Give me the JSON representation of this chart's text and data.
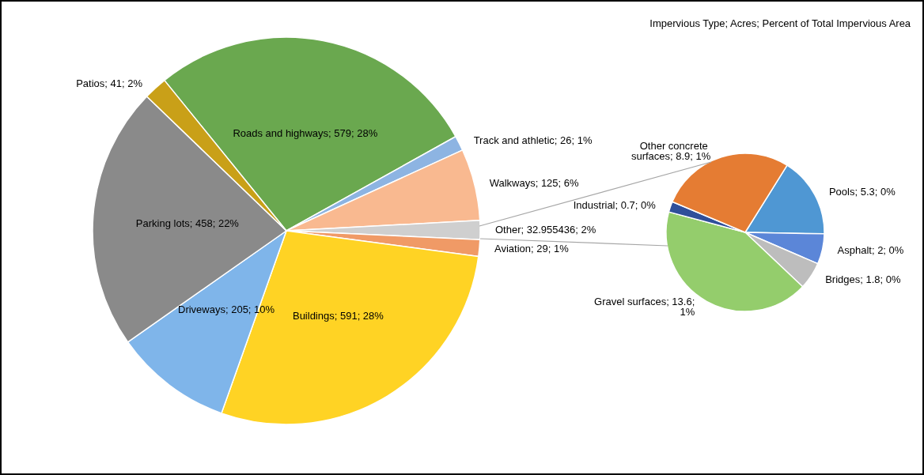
{
  "chart_data": [
    {
      "type": "pie",
      "categories": [
        "Roads and highways",
        "Track and athletic",
        "Walkways",
        "Other",
        "Aviation",
        "Buildings",
        "Driveways",
        "Parking lots",
        "Patios"
      ],
      "values": [
        579,
        26,
        125,
        32.955436,
        29,
        591,
        205,
        458,
        41
      ],
      "value_labels": [
        "579; 28%",
        "26; 1%",
        "125; 6%",
        "32.955436; 2%",
        "29; 1%",
        "591; 28%",
        "205; 10%",
        "458; 22%",
        "41; 2%"
      ],
      "colors": [
        "#6aa84f",
        "#8db4e2",
        "#f9b990",
        "#cfcfcf",
        "#f09a66",
        "#ffd324",
        "#7fb5ea",
        "#8a8a8a",
        "#c9a018"
      ]
    },
    {
      "type": "pie",
      "title": "Impervious Type; Acres; Percent of Total Impervious Area",
      "categories": [
        "Pools",
        "Asphalt",
        "Bridges",
        "Gravel surfaces",
        "Industrial",
        "Other concrete surfaces"
      ],
      "values": [
        5.3,
        2,
        1.8,
        13.6,
        0.7,
        8.9
      ],
      "value_labels": [
        "5.3; 0%",
        "2; 0%",
        "1.8; 0%",
        "13.6; 1%",
        "0.7; 0%",
        "8.9; 1%"
      ],
      "colors": [
        "#4f97d3",
        "#5b86d8",
        "#bdbdbd",
        "#94cd6c",
        "#2f4f9a",
        "#e57c33"
      ]
    }
  ]
}
